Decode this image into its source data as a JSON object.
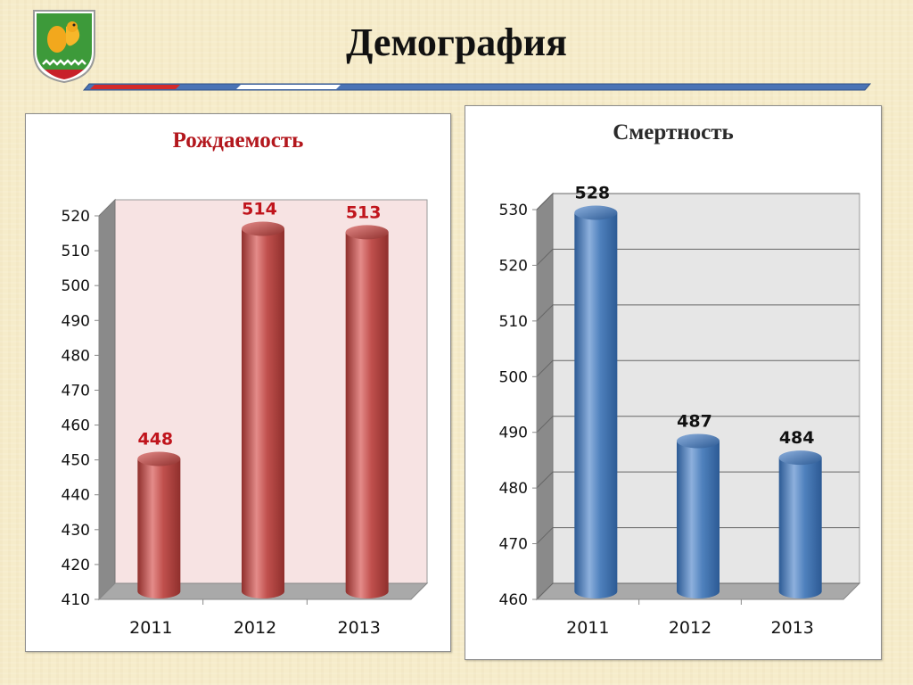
{
  "slide": {
    "title": "Демография",
    "emblem": "coat-of-arms-squirrel-icon"
  },
  "colors": {
    "birth_bar": "#c0504d",
    "death_bar": "#4f81bd",
    "birth_label": "#c0141c",
    "death_label": "#111111"
  },
  "chart_data": [
    {
      "type": "bar",
      "title": "Рождаемость",
      "categories": [
        "2011",
        "2012",
        "2013"
      ],
      "values": [
        448,
        514,
        513
      ],
      "ylim": [
        410,
        520
      ],
      "yticks": [
        "410",
        "420",
        "430",
        "440",
        "450",
        "460",
        "470",
        "480",
        "490",
        "500",
        "510",
        "520"
      ],
      "grid": false,
      "style": "3d-cylinder",
      "legend": "none"
    },
    {
      "type": "bar",
      "title": "Смертность",
      "categories": [
        "2011",
        "2012",
        "2013"
      ],
      "values": [
        528,
        487,
        484
      ],
      "ylim": [
        460,
        530
      ],
      "yticks": [
        "460",
        "470",
        "480",
        "490",
        "500",
        "510",
        "520",
        "530"
      ],
      "grid": true,
      "style": "3d-cylinder",
      "legend": "none"
    }
  ]
}
